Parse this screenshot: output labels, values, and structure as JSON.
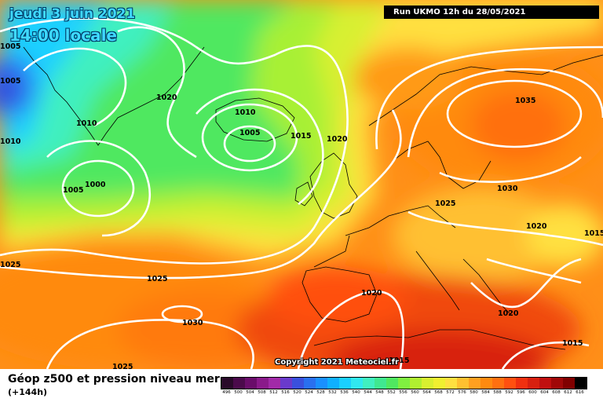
{
  "header": {
    "date_line": "jeudi 3 juin 2021",
    "time_line": "14:00 locale",
    "run_info": "Run UKMO 12h du 28/05/2021"
  },
  "map": {
    "copyright": "Copyright 2021 Meteociel.fr",
    "isobar_labels": [
      {
        "text": "1005",
        "name": "isobar-label-1005-nw"
      },
      {
        "text": "1005",
        "name": "isobar-label-1005-w"
      },
      {
        "text": "1010",
        "name": "isobar-label-1010-edge"
      },
      {
        "text": "1010",
        "name": "isobar-label-1010-greenland"
      },
      {
        "text": "1020",
        "name": "isobar-label-1020-greenland"
      },
      {
        "text": "1010",
        "name": "isobar-label-1010-iceland"
      },
      {
        "text": "1005",
        "name": "isobar-label-1005-iceland"
      },
      {
        "text": "1015",
        "name": "isobar-label-1015-iceland"
      },
      {
        "text": "1020",
        "name": "isobar-label-1020-norway"
      },
      {
        "text": "1000",
        "name": "isobar-label-1000-low"
      },
      {
        "text": "1005",
        "name": "isobar-label-1005-low"
      },
      {
        "text": "1035",
        "name": "isobar-label-1035-scandinavia"
      },
      {
        "text": "1030",
        "name": "isobar-label-1030-baltic"
      },
      {
        "text": "1025",
        "name": "isobar-label-1025-germany"
      },
      {
        "text": "1020",
        "name": "isobar-label-1020-balkans"
      },
      {
        "text": "1015",
        "name": "isobar-label-1015-east"
      },
      {
        "text": "1025",
        "name": "isobar-label-1025-west"
      },
      {
        "text": "1025",
        "name": "isobar-label-1025-atlantic"
      },
      {
        "text": "1030",
        "name": "isobar-label-1030-azores"
      },
      {
        "text": "1020",
        "name": "isobar-label-1020-iberia"
      },
      {
        "text": "1020",
        "name": "isobar-label-1020-greece"
      },
      {
        "text": "1015",
        "name": "isobar-label-1015-africa"
      },
      {
        "text": "1015",
        "name": "isobar-label-1015-se"
      },
      {
        "text": "1025",
        "name": "isobar-label-1025-bottom"
      }
    ]
  },
  "footer": {
    "title": "Géop z500 et pression niveau mer",
    "subtitle": "(+144h)"
  },
  "legend": {
    "values": [
      "496",
      "500",
      "504",
      "508",
      "512",
      "516",
      "520",
      "524",
      "528",
      "532",
      "536",
      "540",
      "544",
      "548",
      "552",
      "556",
      "560",
      "564",
      "568",
      "572",
      "576",
      "580",
      "584",
      "588",
      "592",
      "596",
      "600",
      "604",
      "608",
      "612",
      "616"
    ],
    "colors": [
      "#2a0a2a",
      "#4b0a4b",
      "#6a0d6a",
      "#8a1a8a",
      "#a22aa8",
      "#6a3acc",
      "#3a50dd",
      "#2a70f0",
      "#1a90ff",
      "#10b0ff",
      "#1ad0ff",
      "#30e8f0",
      "#40f0c0",
      "#40e890",
      "#50e860",
      "#80f040",
      "#b0f030",
      "#d8f030",
      "#f0f030",
      "#ffe040",
      "#ffc030",
      "#ffa020",
      "#ff8a10",
      "#ff7010",
      "#ff5010",
      "#f03010",
      "#d82010",
      "#c01010",
      "#a00808",
      "#800000",
      "#000000"
    ]
  }
}
